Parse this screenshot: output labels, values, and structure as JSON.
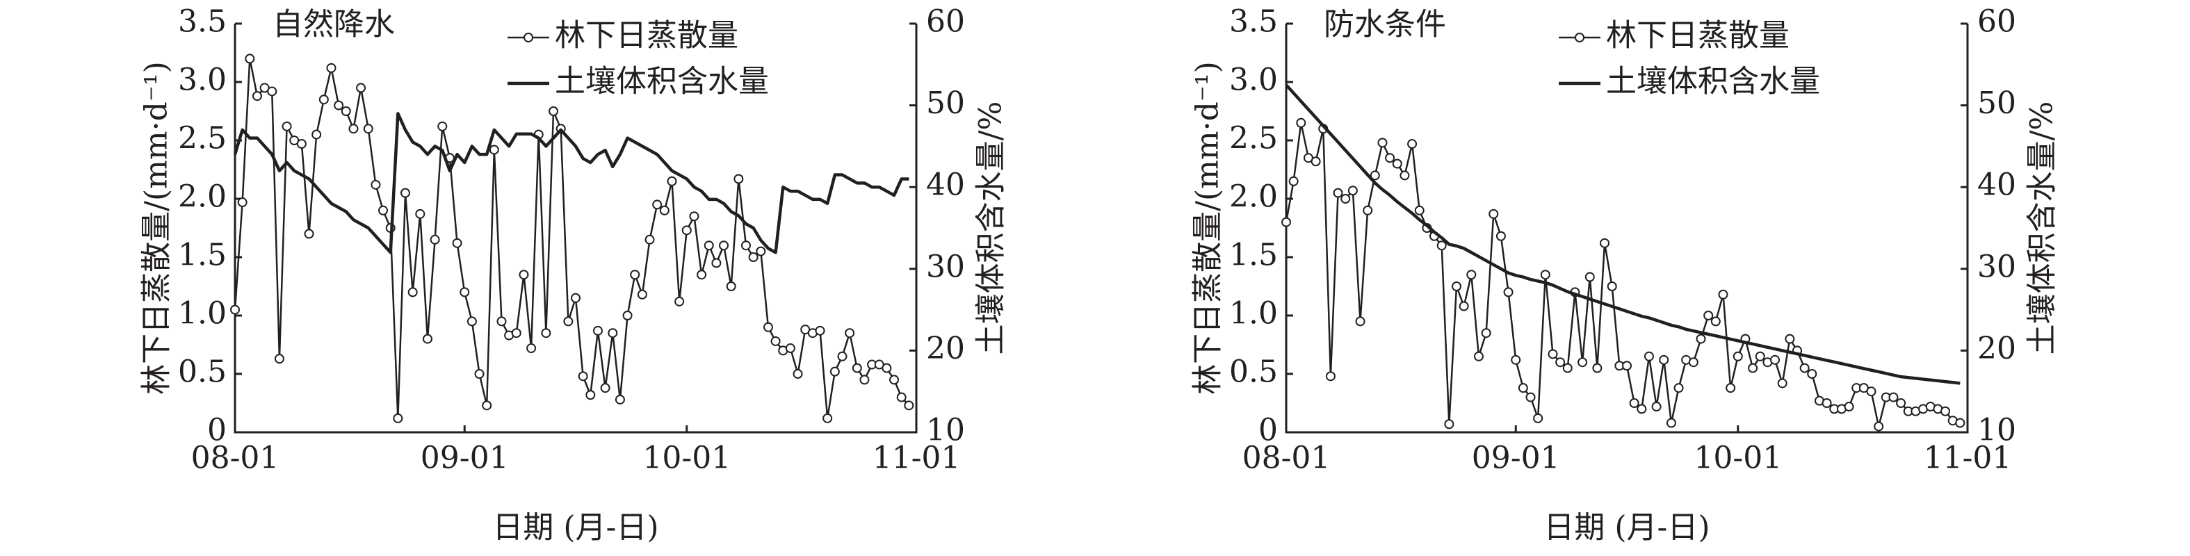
{
  "chart_data": [
    {
      "type": "line",
      "annotation": "自然降水",
      "xlabel": "日期 (月-日)",
      "ylabel": "林下日蒸散量/(mm·d⁻¹)",
      "y2label": "土壤体积含水量/%",
      "x": [
        "08-01",
        "08-02",
        "08-03",
        "08-04",
        "08-05",
        "08-06",
        "08-07",
        "08-08",
        "08-09",
        "08-10",
        "08-11",
        "08-12",
        "08-13",
        "08-14",
        "08-15",
        "08-16",
        "08-17",
        "08-18",
        "08-19",
        "08-20",
        "08-21",
        "08-22",
        "08-23",
        "08-24",
        "08-25",
        "08-26",
        "08-27",
        "08-28",
        "08-29",
        "08-30",
        "08-31",
        "09-01",
        "09-02",
        "09-03",
        "09-04",
        "09-05",
        "09-06",
        "09-07",
        "09-08",
        "09-09",
        "09-10",
        "09-11",
        "09-12",
        "09-13",
        "09-14",
        "09-15",
        "09-16",
        "09-17",
        "09-18",
        "09-19",
        "09-20",
        "09-21",
        "09-22",
        "09-23",
        "09-24",
        "09-25",
        "09-26",
        "09-27",
        "09-28",
        "09-29",
        "09-30",
        "10-01",
        "10-02",
        "10-03",
        "10-04",
        "10-05",
        "10-06",
        "10-07",
        "10-08",
        "10-09",
        "10-10",
        "10-11",
        "10-12",
        "10-13",
        "10-14",
        "10-15",
        "10-16",
        "10-17",
        "10-18",
        "10-19",
        "10-20",
        "10-21",
        "10-22",
        "10-23",
        "10-24",
        "10-25",
        "10-26",
        "10-27",
        "10-28",
        "10-29",
        "10-30",
        "10-31",
        "11-01"
      ],
      "series": [
        {
          "name": "林下日蒸散量",
          "color": "#231f20",
          "marker": "circle",
          "values": [
            1.05,
            1.97,
            3.2,
            2.88,
            2.95,
            2.92,
            0.63,
            2.62,
            2.5,
            2.47,
            1.7,
            2.55,
            2.85,
            3.12,
            2.8,
            2.75,
            2.6,
            2.95,
            2.6,
            2.12,
            1.9,
            1.75,
            0.12,
            2.05,
            1.2,
            1.87,
            0.8,
            1.65,
            2.62,
            2.35,
            1.62,
            1.2,
            0.95,
            0.5,
            0.23,
            2.42,
            0.95,
            0.83,
            0.85,
            1.35,
            0.72,
            2.55,
            0.85,
            2.75,
            2.6,
            0.95,
            1.15,
            0.48,
            0.32,
            0.87,
            0.38,
            0.85,
            0.28,
            1.0,
            1.35,
            1.18,
            1.65,
            1.95,
            1.9,
            2.15,
            1.12,
            1.73,
            1.85,
            1.35,
            1.6,
            1.45,
            1.6,
            1.25,
            2.17,
            1.6,
            1.5,
            1.55,
            0.9,
            0.78,
            0.7,
            0.72,
            0.5,
            0.88,
            0.85,
            0.87,
            0.12,
            0.52,
            0.65,
            0.85,
            0.55,
            0.45,
            0.58,
            0.58,
            0.55,
            0.45,
            0.3,
            0.23,
            null
          ]
        },
        {
          "name": "土壤体积含水量",
          "color": "#231f20",
          "axis": "y2",
          "values": [
            44,
            47,
            46,
            46,
            45,
            44,
            42,
            43,
            42,
            41.5,
            41,
            40,
            39,
            38,
            37.5,
            37,
            36,
            35.5,
            35,
            34,
            33,
            32,
            49,
            47,
            45.5,
            45,
            44,
            45,
            44.5,
            42,
            44,
            43,
            45,
            44,
            44,
            47,
            46,
            45,
            46.5,
            46.5,
            46.5,
            46,
            45,
            46,
            47,
            46,
            45,
            43.5,
            43,
            44,
            44.5,
            42.5,
            44,
            46,
            45.5,
            45,
            44.5,
            44,
            43,
            42,
            41.5,
            41,
            40,
            39.5,
            38.5,
            38.5,
            38,
            37,
            36.5,
            35.5,
            35,
            33.5,
            32.5,
            32,
            40,
            39.5,
            39.5,
            39,
            38.5,
            38.5,
            38,
            41.5,
            41.5,
            41,
            40.5,
            40.5,
            40,
            40,
            39.5,
            39,
            41,
            41,
            null
          ]
        }
      ],
      "xticks": [
        "08-01",
        "09-01",
        "10-01",
        "11-01"
      ],
      "ylim": [
        0,
        3.5
      ],
      "yticks": [
        0,
        0.5,
        {
          "value": 1,
          "label": "1.0"
        },
        1.5,
        {
          "value": 2,
          "label": "2.0"
        },
        2.5,
        {
          "value": 3,
          "label": "3.0"
        },
        3.5
      ],
      "y2lim": [
        10,
        60
      ],
      "y2ticks": [
        10,
        20,
        30,
        40,
        50,
        60
      ]
    },
    {
      "type": "line",
      "annotation": "防水条件",
      "xlabel": "日期 (月-日)",
      "ylabel": "林下日蒸散量/(mm·d⁻¹)",
      "y2label": "土壤体积含水量/%",
      "x": [
        "08-01",
        "08-02",
        "08-03",
        "08-04",
        "08-05",
        "08-06",
        "08-07",
        "08-08",
        "08-09",
        "08-10",
        "08-11",
        "08-12",
        "08-13",
        "08-14",
        "08-15",
        "08-16",
        "08-17",
        "08-18",
        "08-19",
        "08-20",
        "08-21",
        "08-22",
        "08-23",
        "08-24",
        "08-25",
        "08-26",
        "08-27",
        "08-28",
        "08-29",
        "08-30",
        "08-31",
        "09-01",
        "09-02",
        "09-03",
        "09-04",
        "09-05",
        "09-06",
        "09-07",
        "09-08",
        "09-09",
        "09-10",
        "09-11",
        "09-12",
        "09-13",
        "09-14",
        "09-15",
        "09-16",
        "09-17",
        "09-18",
        "09-19",
        "09-20",
        "09-21",
        "09-22",
        "09-23",
        "09-24",
        "09-25",
        "09-26",
        "09-27",
        "09-28",
        "09-29",
        "09-30",
        "10-01",
        "10-02",
        "10-03",
        "10-04",
        "10-05",
        "10-06",
        "10-07",
        "10-08",
        "10-09",
        "10-10",
        "10-11",
        "10-12",
        "10-13",
        "10-14",
        "10-15",
        "10-16",
        "10-17",
        "10-18",
        "10-19",
        "10-20",
        "10-21",
        "10-22",
        "10-23",
        "10-24",
        "10-25",
        "10-26",
        "10-27",
        "10-28",
        "10-29",
        "10-30",
        "10-31",
        "11-01"
      ],
      "series": [
        {
          "name": "林下日蒸散量",
          "color": "#231f20",
          "marker": "circle",
          "values": [
            1.8,
            2.15,
            2.65,
            2.35,
            2.32,
            2.6,
            0.48,
            2.05,
            2.0,
            2.07,
            0.95,
            1.9,
            2.2,
            2.48,
            2.35,
            2.3,
            2.2,
            2.47,
            1.9,
            1.75,
            1.68,
            1.6,
            0.07,
            1.25,
            1.08,
            1.35,
            0.65,
            0.85,
            1.87,
            1.68,
            1.2,
            0.62,
            0.38,
            0.3,
            0.12,
            1.35,
            0.67,
            0.6,
            0.55,
            1.2,
            0.6,
            1.33,
            0.55,
            1.62,
            1.25,
            0.57,
            0.57,
            0.25,
            0.2,
            0.65,
            0.22,
            0.62,
            0.08,
            0.38,
            0.62,
            0.6,
            0.8,
            1.0,
            0.95,
            1.18,
            0.38,
            0.65,
            0.8,
            0.55,
            0.65,
            0.6,
            0.62,
            0.42,
            0.8,
            0.7,
            0.55,
            0.5,
            0.27,
            0.25,
            0.2,
            0.2,
            0.22,
            0.38,
            0.38,
            0.35,
            0.05,
            0.3,
            0.3,
            0.25,
            0.18,
            0.18,
            0.2,
            0.22,
            0.2,
            0.18,
            0.1,
            0.08,
            null
          ]
        },
        {
          "name": "土壤体积含水量",
          "color": "#231f20",
          "axis": "y2",
          "values": [
            52.5,
            51.5,
            50.5,
            49.5,
            48.5,
            47.5,
            46.5,
            45.5,
            44.5,
            43.5,
            42.5,
            41.5,
            40.5,
            39.7,
            39,
            38.2,
            37.5,
            36.8,
            36,
            35.3,
            34.5,
            33.8,
            33,
            32.8,
            32.5,
            32,
            31.5,
            31,
            30.5,
            30,
            29.5,
            29.2,
            29,
            28.7,
            28.5,
            28.3,
            28,
            27.6,
            27.2,
            26.9,
            26.6,
            26.3,
            26,
            25.7,
            25.4,
            25.1,
            24.8,
            24.5,
            24.2,
            24,
            23.7,
            23.4,
            23.1,
            22.9,
            22.6,
            22.4,
            22.2,
            22,
            21.8,
            21.6,
            21.4,
            21.2,
            21,
            20.8,
            20.6,
            20.4,
            20.2,
            20,
            19.8,
            19.6,
            19.4,
            19.2,
            19,
            18.8,
            18.6,
            18.4,
            18.2,
            18,
            17.8,
            17.6,
            17.4,
            17.2,
            17,
            16.8,
            16.7,
            16.6,
            16.5,
            16.4,
            16.3,
            16.2,
            16.1,
            16,
            null
          ]
        }
      ],
      "xticks": [
        "08-01",
        "09-01",
        "10-01",
        "11-01"
      ],
      "ylim": [
        0,
        3.5
      ],
      "yticks": [
        0,
        0.5,
        {
          "value": 1,
          "label": "1.0"
        },
        1.5,
        {
          "value": 2,
          "label": "2.0"
        },
        2.5,
        {
          "value": 3,
          "label": "3.0"
        },
        3.5
      ],
      "y2lim": [
        10,
        60
      ],
      "y2ticks": [
        10,
        20,
        30,
        40,
        50,
        60
      ]
    }
  ]
}
